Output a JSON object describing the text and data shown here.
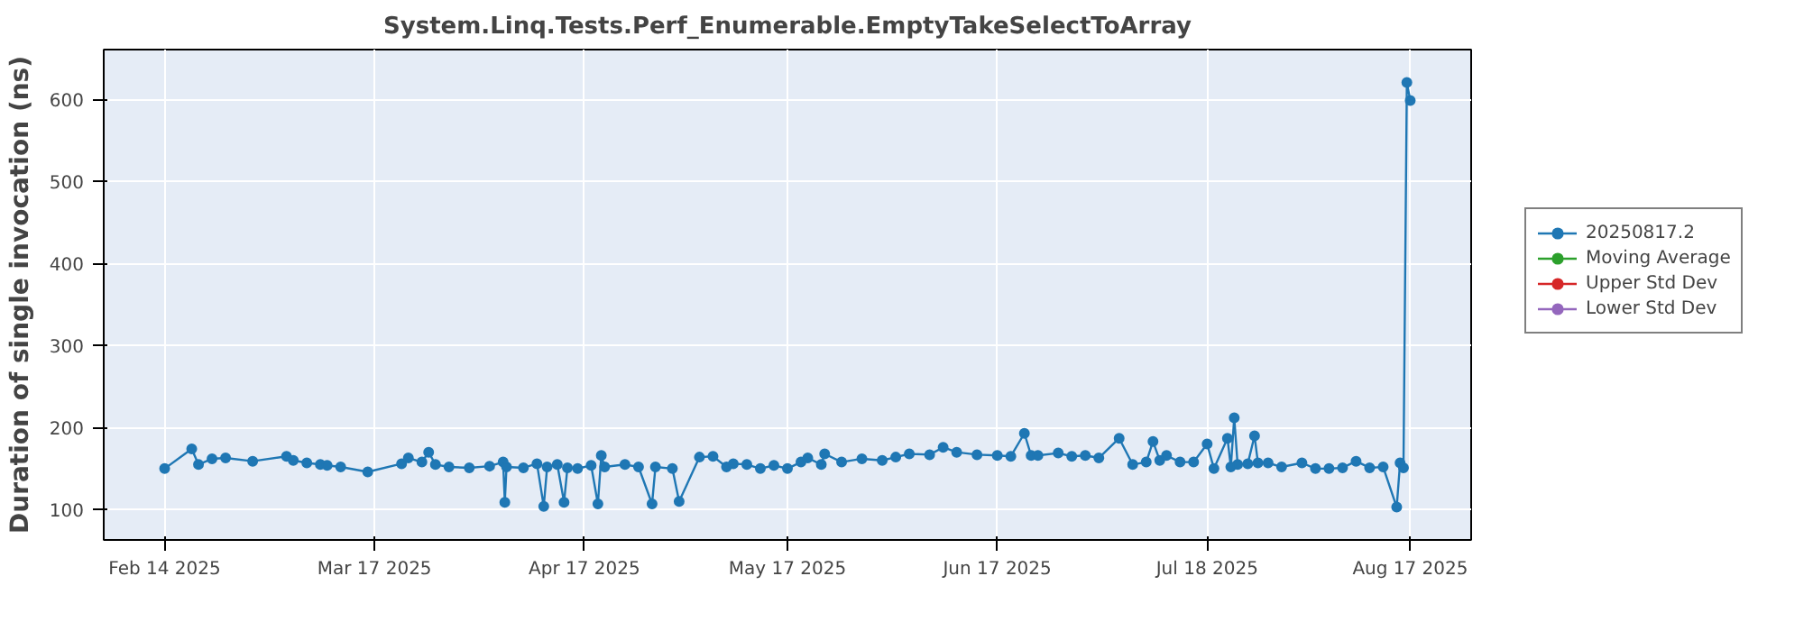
{
  "chart_data": {
    "type": "line",
    "title": "System.Linq.Tests.Perf_Enumerable.EmptyTakeSelectToArray",
    "ylabel": "Duration of single invocation (ns)",
    "xlim": [
      "2025-02-05",
      "2025-08-26"
    ],
    "ylim": [
      63,
      661
    ],
    "xticks": [
      {
        "value": "2025-02-14",
        "label": "Feb 14 2025"
      },
      {
        "value": "2025-03-17",
        "label": "Mar 17 2025"
      },
      {
        "value": "2025-04-17",
        "label": "Apr 17 2025"
      },
      {
        "value": "2025-05-17",
        "label": "May 17 2025"
      },
      {
        "value": "2025-06-17",
        "label": "Jun 17 2025"
      },
      {
        "value": "2025-07-18",
        "label": "Jul 18 2025"
      },
      {
        "value": "2025-08-17",
        "label": "Aug 17 2025"
      }
    ],
    "yticks": [
      100,
      200,
      300,
      400,
      500,
      600
    ],
    "grid": true,
    "legend": "right",
    "marker": "circle",
    "line_style": "solid",
    "series": [
      {
        "name": "20250817.2",
        "color": "#1f77b4",
        "x": [
          "2025-02-14",
          "2025-02-18",
          "2025-02-19",
          "2025-02-21",
          "2025-02-23",
          "2025-02-27",
          "2025-03-04",
          "2025-03-05",
          "2025-03-07",
          "2025-03-09",
          "2025-03-10",
          "2025-03-12",
          "2025-03-16",
          "2025-03-21",
          "2025-03-22",
          "2025-03-24",
          "2025-03-25",
          "2025-03-26",
          "2025-03-28",
          "2025-03-31",
          "2025-04-03",
          "2025-04-05",
          "2025-04-05T06:00",
          "2025-04-05T12:00",
          "2025-04-08",
          "2025-04-10",
          "2025-04-11",
          "2025-04-11T12:00",
          "2025-04-13",
          "2025-04-14",
          "2025-04-14T12:00",
          "2025-04-16",
          "2025-04-18",
          "2025-04-19",
          "2025-04-19T12:00",
          "2025-04-20",
          "2025-04-23",
          "2025-04-25",
          "2025-04-27",
          "2025-04-27T12:00",
          "2025-04-30",
          "2025-05-01",
          "2025-05-04",
          "2025-05-06",
          "2025-05-08",
          "2025-05-09",
          "2025-05-11",
          "2025-05-13",
          "2025-05-15",
          "2025-05-17",
          "2025-05-19",
          "2025-05-20",
          "2025-05-22",
          "2025-05-22T12:00",
          "2025-05-25",
          "2025-05-28",
          "2025-05-31",
          "2025-06-02",
          "2025-06-04",
          "2025-06-07",
          "2025-06-09",
          "2025-06-11",
          "2025-06-14",
          "2025-06-17",
          "2025-06-19",
          "2025-06-21",
          "2025-06-22",
          "2025-06-23",
          "2025-06-26",
          "2025-06-28",
          "2025-06-30",
          "2025-07-02",
          "2025-07-05",
          "2025-07-07",
          "2025-07-09",
          "2025-07-10",
          "2025-07-11",
          "2025-07-12",
          "2025-07-14",
          "2025-07-16",
          "2025-07-18",
          "2025-07-19",
          "2025-07-21",
          "2025-07-21T12:00",
          "2025-07-22",
          "2025-07-22T12:00",
          "2025-07-24",
          "2025-07-25",
          "2025-07-25T12:00",
          "2025-07-27",
          "2025-07-29",
          "2025-08-01",
          "2025-08-03",
          "2025-08-05",
          "2025-08-07",
          "2025-08-09",
          "2025-08-11",
          "2025-08-13",
          "2025-08-15",
          "2025-08-15T12:00",
          "2025-08-16",
          "2025-08-16T12:00",
          "2025-08-17"
        ],
        "values": [
          150,
          174,
          155,
          162,
          163,
          159,
          165,
          160,
          157,
          155,
          154,
          152,
          146,
          156,
          163,
          158,
          170,
          155,
          152,
          151,
          153,
          158,
          109,
          152,
          151,
          156,
          104,
          152,
          155,
          109,
          151,
          150,
          154,
          107,
          166,
          152,
          155,
          152,
          107,
          152,
          150,
          110,
          164,
          165,
          152,
          156,
          155,
          150,
          154,
          150,
          158,
          163,
          155,
          168,
          158,
          162,
          160,
          164,
          168,
          167,
          176,
          170,
          167,
          166,
          165,
          193,
          166,
          166,
          169,
          165,
          166,
          163,
          187,
          155,
          158,
          183,
          160,
          166,
          158,
          158,
          180,
          150,
          187,
          152,
          212,
          155,
          156,
          190,
          157,
          157,
          152,
          157,
          150,
          150,
          151,
          159,
          151,
          152,
          103,
          157,
          151,
          621,
          599
        ]
      },
      {
        "name": "Moving Average",
        "color": "#2ca02c"
      },
      {
        "name": "Upper Std Dev",
        "color": "#d62728"
      },
      {
        "name": "Lower Std Dev",
        "color": "#9467bd"
      }
    ]
  }
}
